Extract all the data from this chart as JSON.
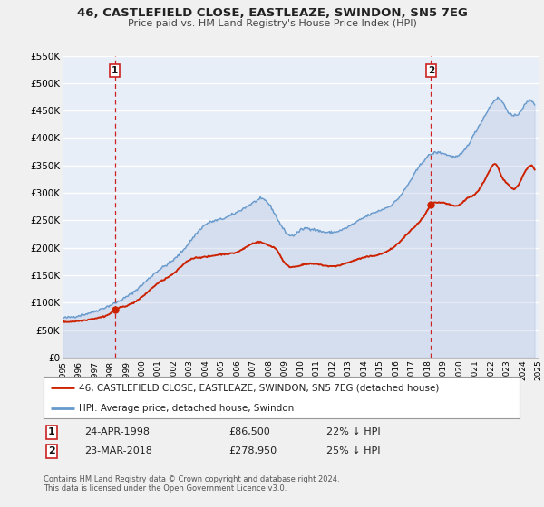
{
  "title": "46, CASTLEFIELD CLOSE, EASTLEAZE, SWINDON, SN5 7EG",
  "subtitle": "Price paid vs. HM Land Registry's House Price Index (HPI)",
  "legend_label_red": "46, CASTLEFIELD CLOSE, EASTLEAZE, SWINDON, SN5 7EG (detached house)",
  "legend_label_blue": "HPI: Average price, detached house, Swindon",
  "transaction1_label": "1",
  "transaction1_date": "24-APR-1998",
  "transaction1_price": "£86,500",
  "transaction1_hpi": "22% ↓ HPI",
  "transaction1_year": 1998.3,
  "transaction1_value": 86500,
  "transaction2_label": "2",
  "transaction2_date": "23-MAR-2018",
  "transaction2_price": "£278,950",
  "transaction2_hpi": "25% ↓ HPI",
  "transaction2_year": 2018.22,
  "transaction2_value": 278950,
  "footnote1": "Contains HM Land Registry data © Crown copyright and database right 2024.",
  "footnote2": "This data is licensed under the Open Government Licence v3.0.",
  "xmin": 1995,
  "xmax": 2025,
  "ymin": 0,
  "ymax": 550000,
  "yticks": [
    0,
    50000,
    100000,
    150000,
    200000,
    250000,
    300000,
    350000,
    400000,
    450000,
    500000,
    550000
  ],
  "ytick_labels": [
    "£0",
    "£50K",
    "£100K",
    "£150K",
    "£200K",
    "£250K",
    "£300K",
    "£350K",
    "£400K",
    "£450K",
    "£500K",
    "£550K"
  ],
  "fig_bg": "#f0f0f0",
  "plot_bg": "#e8eef8",
  "red_color": "#cc2200",
  "blue_color": "#6699cc",
  "blue_fill": "#aabbdd",
  "grid_color": "#ffffff",
  "vline_color": "#cc2222"
}
